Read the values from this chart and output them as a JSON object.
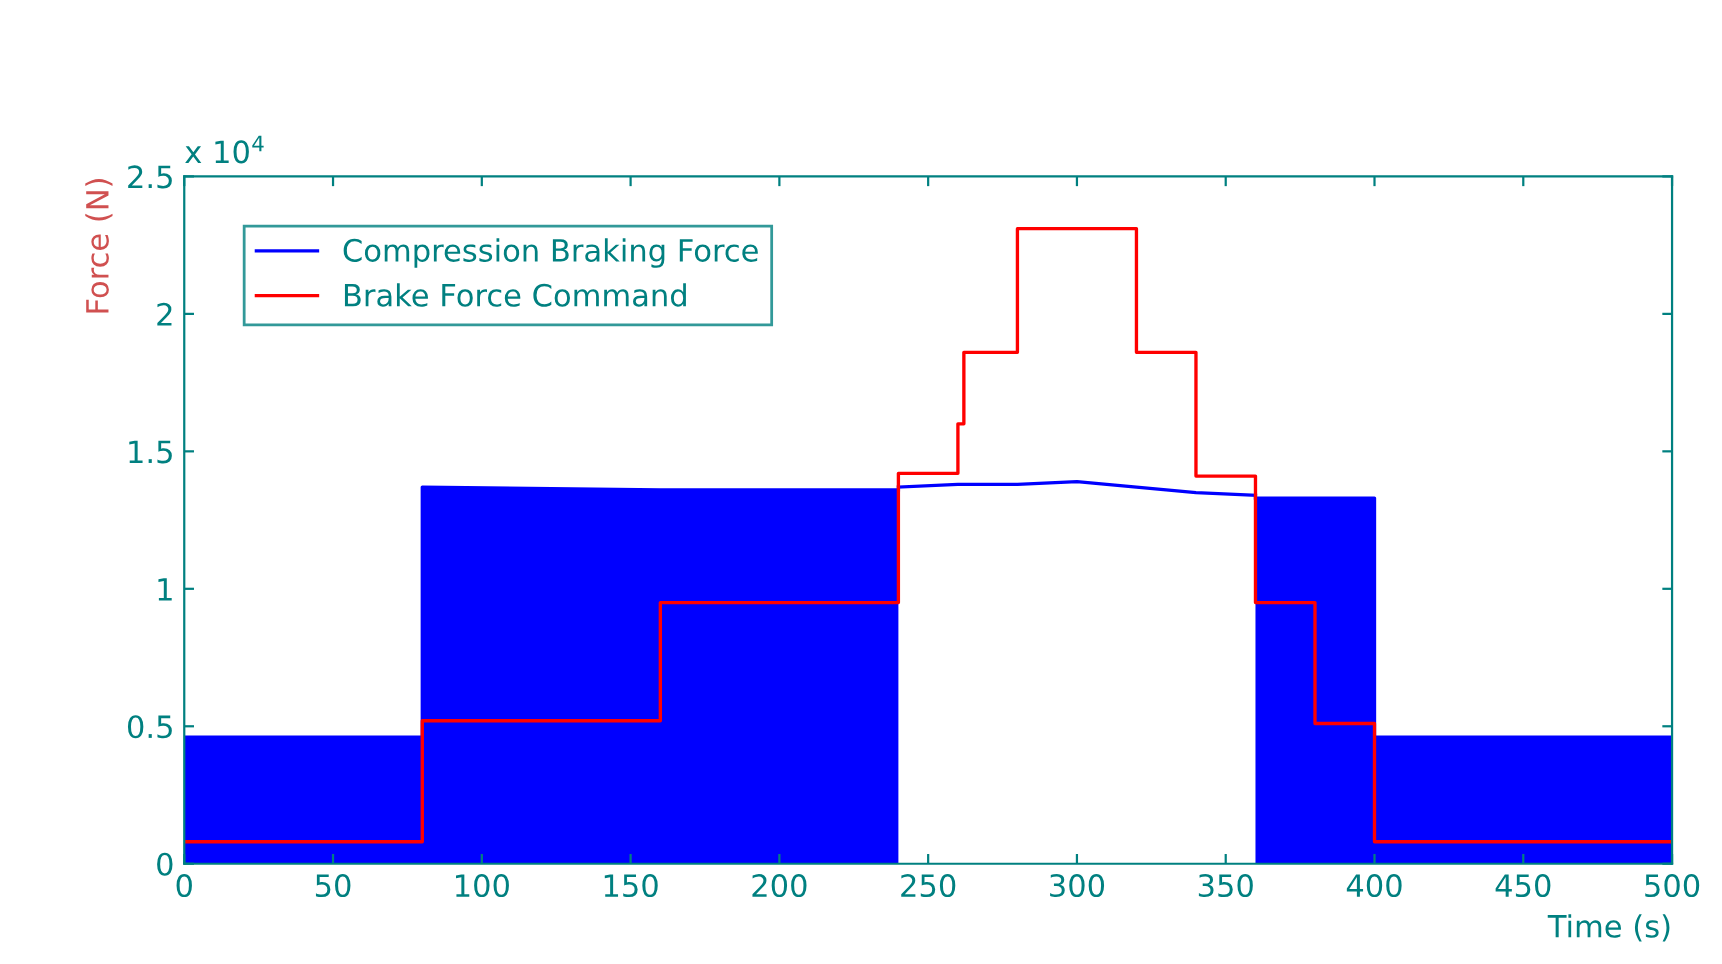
{
  "chart_data": {
    "type": "line",
    "xlabel": "Time (s)",
    "ylabel": "Force (N)",
    "annotations": [
      "x 10$^{4}$"
    ],
    "xlim": [
      0,
      500
    ],
    "xticks": [
      0,
      50,
      100,
      150,
      200,
      250,
      300,
      350,
      400,
      450,
      500
    ],
    "ylim": [
      0,
      2.5
    ],
    "yticks": [
      0,
      0.5,
      1,
      1.5,
      2,
      2.5
    ],
    "grid": false,
    "legend": "top left",
    "line_style": "solid",
    "marker": "none",
    "series": [
      {
        "name": "Compression Braking Force",
        "type": "area",
        "color": "#0000ff",
        "x": [
          0,
          80,
          80,
          160,
          240
        ],
        "values": [
          0.46,
          0.46,
          1.37,
          1.36,
          1.36
        ]
      },
      {
        "type": "area",
        "color": "#0000ff",
        "x": [
          360,
          400,
          400,
          500
        ],
        "values": [
          1.33,
          1.33,
          0.46,
          0.46
        ]
      },
      {
        "color": "#0000ff",
        "x": [
          240,
          260,
          280,
          300,
          320,
          340,
          360
        ],
        "values": [
          1.37,
          1.38,
          1.38,
          1.39,
          1.37,
          1.35,
          1.34
        ]
      },
      {
        "name": "Brake Force Command",
        "color": "#ff0000",
        "x": [
          0,
          80,
          80,
          160,
          160,
          240,
          240,
          260,
          260,
          262,
          262,
          280,
          280,
          320,
          320,
          340,
          340,
          360,
          360,
          380,
          380,
          400,
          400,
          500
        ],
        "values": [
          0.08,
          0.08,
          0.52,
          0.52,
          0.95,
          0.95,
          1.42,
          1.42,
          1.6,
          1.6,
          1.86,
          1.86,
          2.31,
          2.31,
          1.86,
          1.86,
          1.41,
          1.41,
          0.95,
          0.95,
          0.51,
          0.51,
          0.08,
          0.08
        ]
      }
    ]
  }
}
